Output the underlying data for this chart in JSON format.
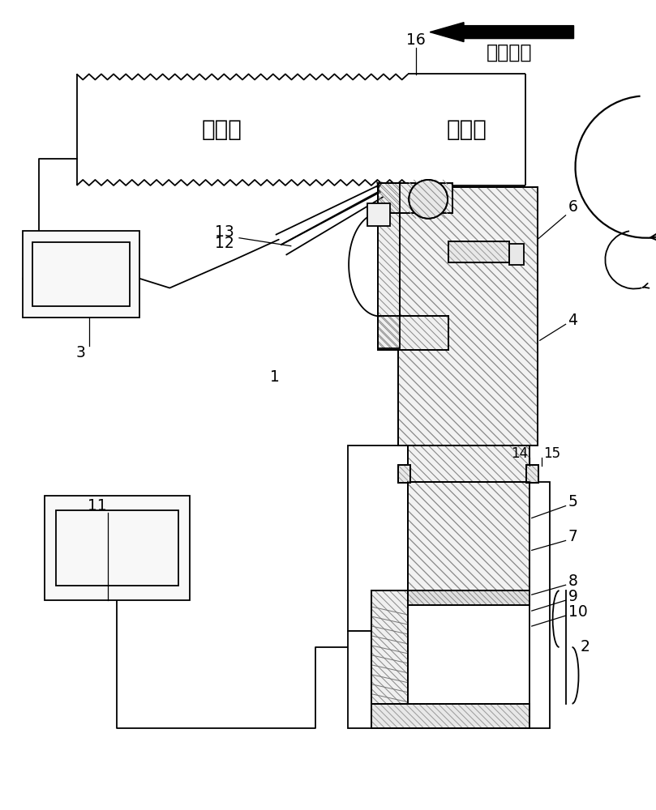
{
  "bg": "#ffffff",
  "lc": "#000000",
  "lw": 1.3,
  "feed_label": "进给方向",
  "unprocessed": "未加工",
  "processed": "加工后"
}
